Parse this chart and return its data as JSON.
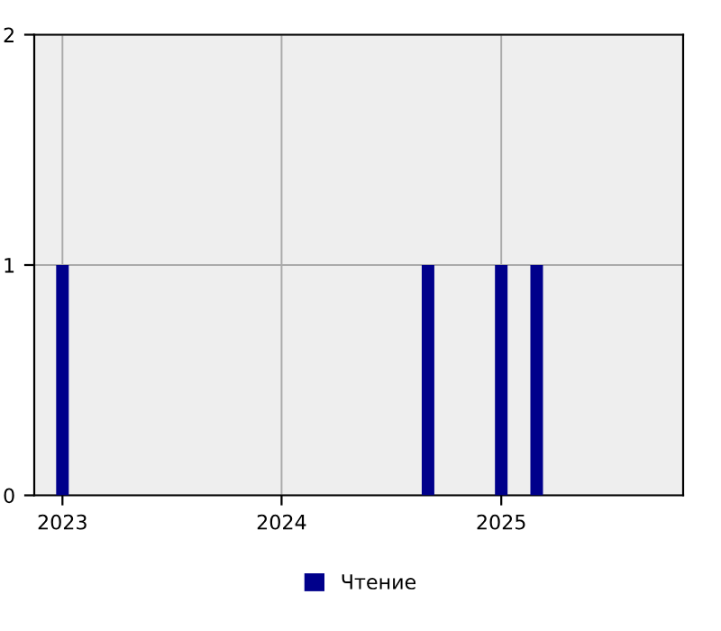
{
  "chart_data": {
    "type": "bar",
    "x": [
      "2023-01",
      "2024-09",
      "2025-01",
      "2025-03"
    ],
    "series": [
      {
        "name": "Чтение",
        "color": "#00008b",
        "values": [
          1,
          1,
          1,
          1
        ]
      }
    ],
    "xlim": [
      "2022-11-15",
      "2025-10-31"
    ],
    "xticks": [
      "2023",
      "2024",
      "2025"
    ],
    "ylim": [
      0,
      2
    ],
    "yticks": [
      0,
      1,
      2
    ],
    "grid": true,
    "legend": "bottom"
  }
}
